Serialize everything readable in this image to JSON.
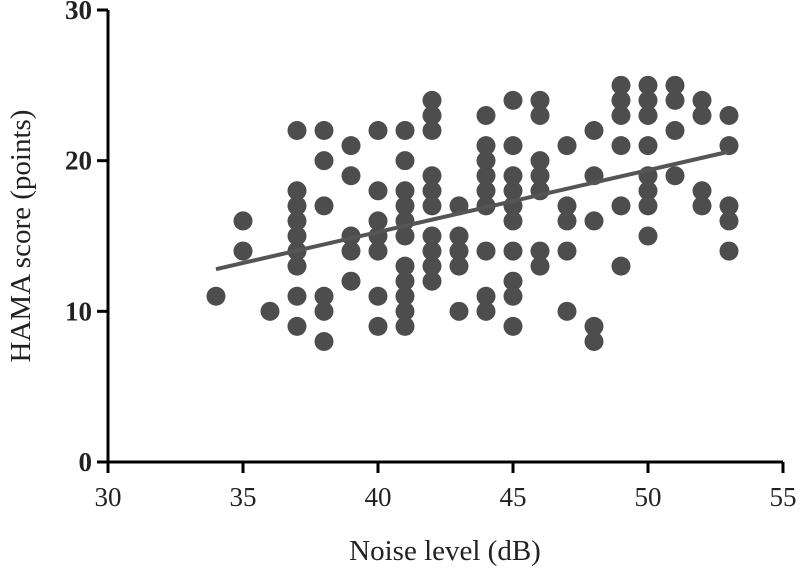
{
  "chart_data": {
    "type": "scatter",
    "title": "",
    "xlabel": "Noise level (dB)",
    "ylabel": "HAMA score (points)",
    "xlim": [
      30,
      55
    ],
    "ylim": [
      0,
      30
    ],
    "xticks": [
      "30",
      "35",
      "40",
      "45",
      "50",
      "55"
    ],
    "yticks": [
      "0",
      "10",
      "20",
      "30"
    ],
    "grid": false,
    "marker_color": "#4d4d4d",
    "trend_color": "#555555",
    "points": [
      [
        34,
        11
      ],
      [
        35,
        16
      ],
      [
        35,
        14
      ],
      [
        36,
        10
      ],
      [
        37,
        22
      ],
      [
        37,
        18
      ],
      [
        37,
        17
      ],
      [
        37,
        16
      ],
      [
        37,
        15
      ],
      [
        37,
        14
      ],
      [
        37,
        13
      ],
      [
        37,
        11
      ],
      [
        37,
        9
      ],
      [
        38,
        22
      ],
      [
        38,
        20
      ],
      [
        38,
        17
      ],
      [
        38,
        11
      ],
      [
        38,
        10
      ],
      [
        38,
        8
      ],
      [
        39,
        21
      ],
      [
        39,
        19
      ],
      [
        39,
        15
      ],
      [
        39,
        14
      ],
      [
        39,
        12
      ],
      [
        40,
        22
      ],
      [
        40,
        18
      ],
      [
        40,
        16
      ],
      [
        40,
        15
      ],
      [
        40,
        14
      ],
      [
        40,
        11
      ],
      [
        40,
        9
      ],
      [
        41,
        22
      ],
      [
        41,
        20
      ],
      [
        41,
        18
      ],
      [
        41,
        17
      ],
      [
        41,
        16
      ],
      [
        41,
        15
      ],
      [
        41,
        13
      ],
      [
        41,
        12
      ],
      [
        41,
        11
      ],
      [
        41,
        10
      ],
      [
        41,
        9
      ],
      [
        42,
        24
      ],
      [
        42,
        23
      ],
      [
        42,
        22
      ],
      [
        42,
        19
      ],
      [
        42,
        18
      ],
      [
        42,
        17
      ],
      [
        42,
        15
      ],
      [
        42,
        14
      ],
      [
        42,
        13
      ],
      [
        42,
        12
      ],
      [
        43,
        17
      ],
      [
        43,
        15
      ],
      [
        43,
        14
      ],
      [
        43,
        13
      ],
      [
        43,
        10
      ],
      [
        44,
        23
      ],
      [
        44,
        21
      ],
      [
        44,
        20
      ],
      [
        44,
        19
      ],
      [
        44,
        18
      ],
      [
        44,
        17
      ],
      [
        44,
        14
      ],
      [
        44,
        11
      ],
      [
        44,
        10
      ],
      [
        45,
        24
      ],
      [
        45,
        21
      ],
      [
        45,
        19
      ],
      [
        45,
        18
      ],
      [
        45,
        17
      ],
      [
        45,
        16
      ],
      [
        45,
        14
      ],
      [
        45,
        12
      ],
      [
        45,
        11
      ],
      [
        45,
        9
      ],
      [
        46,
        24
      ],
      [
        46,
        23
      ],
      [
        46,
        20
      ],
      [
        46,
        19
      ],
      [
        46,
        18
      ],
      [
        46,
        14
      ],
      [
        46,
        13
      ],
      [
        47,
        21
      ],
      [
        47,
        17
      ],
      [
        47,
        16
      ],
      [
        47,
        14
      ],
      [
        47,
        10
      ],
      [
        48,
        22
      ],
      [
        48,
        19
      ],
      [
        48,
        16
      ],
      [
        48,
        9
      ],
      [
        48,
        8
      ],
      [
        49,
        25
      ],
      [
        49,
        24
      ],
      [
        49,
        23
      ],
      [
        49,
        21
      ],
      [
        49,
        17
      ],
      [
        49,
        13
      ],
      [
        50,
        25
      ],
      [
        50,
        24
      ],
      [
        50,
        23
      ],
      [
        50,
        21
      ],
      [
        50,
        19
      ],
      [
        50,
        18
      ],
      [
        50,
        17
      ],
      [
        50,
        15
      ],
      [
        51,
        25
      ],
      [
        51,
        24
      ],
      [
        51,
        22
      ],
      [
        51,
        19
      ],
      [
        52,
        24
      ],
      [
        52,
        23
      ],
      [
        52,
        18
      ],
      [
        52,
        17
      ],
      [
        53,
        23
      ],
      [
        53,
        21
      ],
      [
        53,
        17
      ],
      [
        53,
        16
      ],
      [
        53,
        14
      ]
    ],
    "trend_line": {
      "x": [
        34,
        53
      ],
      "y": [
        12.8,
        20.6
      ]
    }
  }
}
